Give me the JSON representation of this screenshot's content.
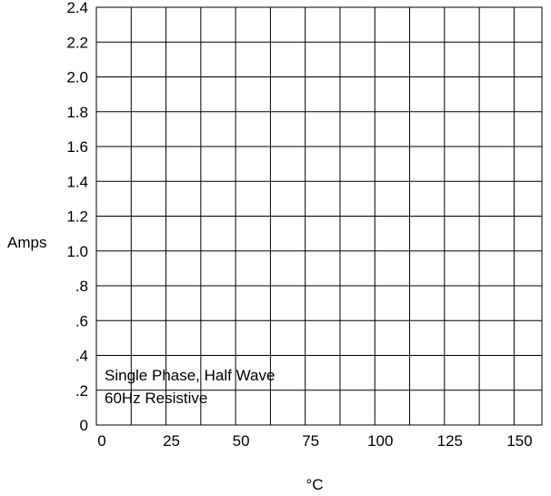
{
  "chart_data": {
    "type": "line",
    "title": "",
    "xlabel": "°C",
    "ylabel": "Amps",
    "xlim": [
      0,
      160
    ],
    "ylim": [
      0,
      2.4
    ],
    "x_grid_step": 12.5,
    "x_ticks": [
      {
        "value": 0,
        "label": "0"
      },
      {
        "value": 25,
        "label": "25"
      },
      {
        "value": 50,
        "label": "50"
      },
      {
        "value": 75,
        "label": "75"
      },
      {
        "value": 100,
        "label": "100"
      },
      {
        "value": 125,
        "label": "125"
      },
      {
        "value": 150,
        "label": "150"
      }
    ],
    "y_ticks": [
      {
        "value": 0,
        "label": "0"
      },
      {
        "value": 0.2,
        "label": ".2"
      },
      {
        "value": 0.4,
        "label": ".4"
      },
      {
        "value": 0.6,
        "label": ".6"
      },
      {
        "value": 0.8,
        "label": ".8"
      },
      {
        "value": 1.0,
        "label": "1.0"
      },
      {
        "value": 1.2,
        "label": "1.2"
      },
      {
        "value": 1.4,
        "label": "1.4"
      },
      {
        "value": 1.6,
        "label": "1.6"
      },
      {
        "value": 1.8,
        "label": "1.8"
      },
      {
        "value": 2.0,
        "label": "2.0"
      },
      {
        "value": 2.2,
        "label": "2.2"
      },
      {
        "value": 2.4,
        "label": "2.4"
      }
    ],
    "grid": true,
    "series": [],
    "annotation_lines": [
      "Single Phase, Half Wave",
      "60Hz Resistive"
    ],
    "line_color": "#000000"
  }
}
